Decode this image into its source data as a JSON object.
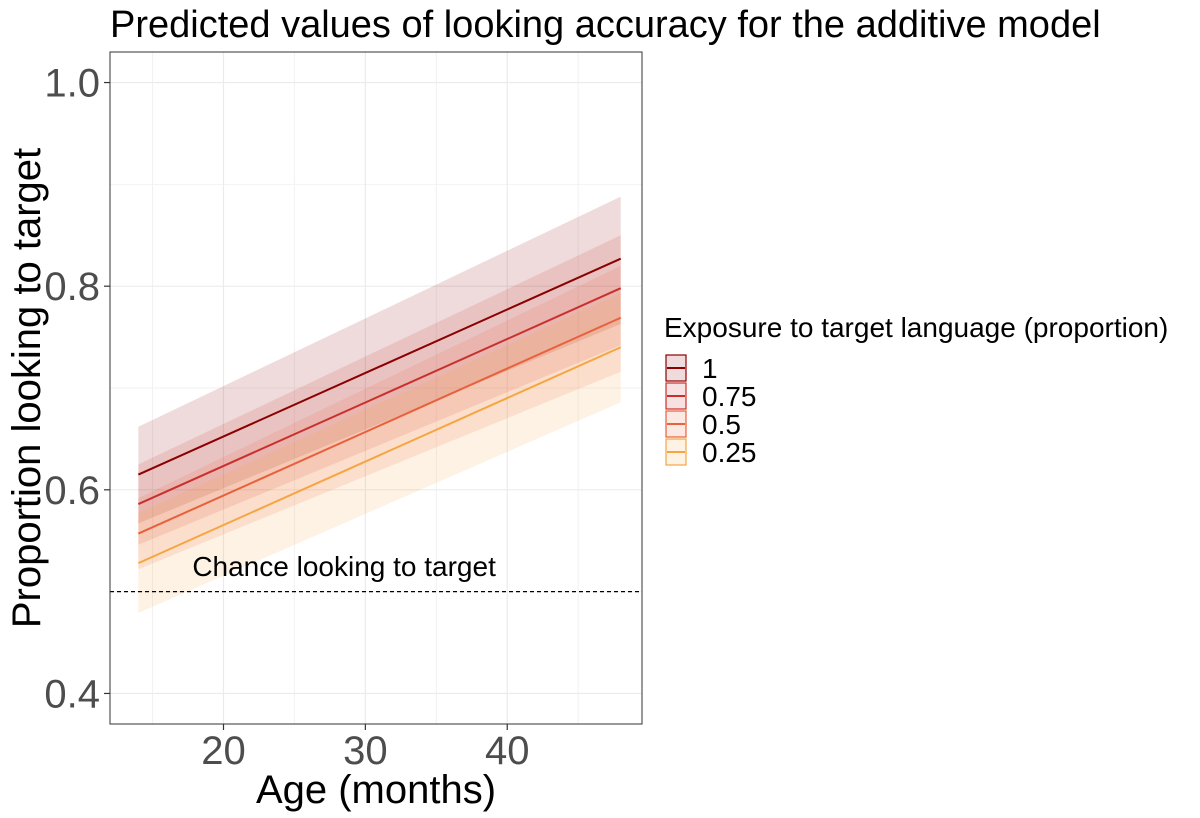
{
  "chart_data": {
    "type": "line",
    "title": "Predicted values of looking accuracy for the additive model",
    "xlabel": "Age (months)",
    "ylabel": "Proportion looking to target",
    "xlim": [
      12,
      49.5
    ],
    "ylim": [
      0.37,
      1.03
    ],
    "x_ticks": [
      20,
      30,
      40
    ],
    "x_tick_labels": [
      "20",
      "30",
      "40"
    ],
    "y_ticks": [
      0.4,
      0.6,
      0.8,
      1.0
    ],
    "y_tick_labels": [
      "0.4",
      "0.6",
      "0.8",
      "1.0"
    ],
    "grid": true,
    "x": [
      14,
      48
    ],
    "legend": {
      "title": "Exposure to target language (proportion)",
      "position": "right"
    },
    "series": [
      {
        "name": "1",
        "color": "#8b0000",
        "values": [
          0.615,
          0.827
        ],
        "ci_lower": [
          0.567,
          0.763
        ],
        "ci_upper": [
          0.662,
          0.888
        ]
      },
      {
        "name": "0.75",
        "color": "#c9302c",
        "values": [
          0.586,
          0.798
        ],
        "ci_lower": [
          0.546,
          0.742
        ],
        "ci_upper": [
          0.625,
          0.85
        ]
      },
      {
        "name": "0.5",
        "color": "#e8603c",
        "values": [
          0.557,
          0.769
        ],
        "ci_lower": [
          0.522,
          0.716
        ],
        "ci_upper": [
          0.592,
          0.82
        ]
      },
      {
        "name": "0.25",
        "color": "#f5a642",
        "values": [
          0.528,
          0.74
        ],
        "ci_lower": [
          0.479,
          0.686
        ],
        "ci_upper": [
          0.577,
          0.793
        ]
      }
    ],
    "reference_line": {
      "y": 0.5,
      "style": "dashed"
    },
    "annotation": {
      "text": "Chance looking to target",
      "x": 28.5,
      "y": 0.525
    }
  }
}
